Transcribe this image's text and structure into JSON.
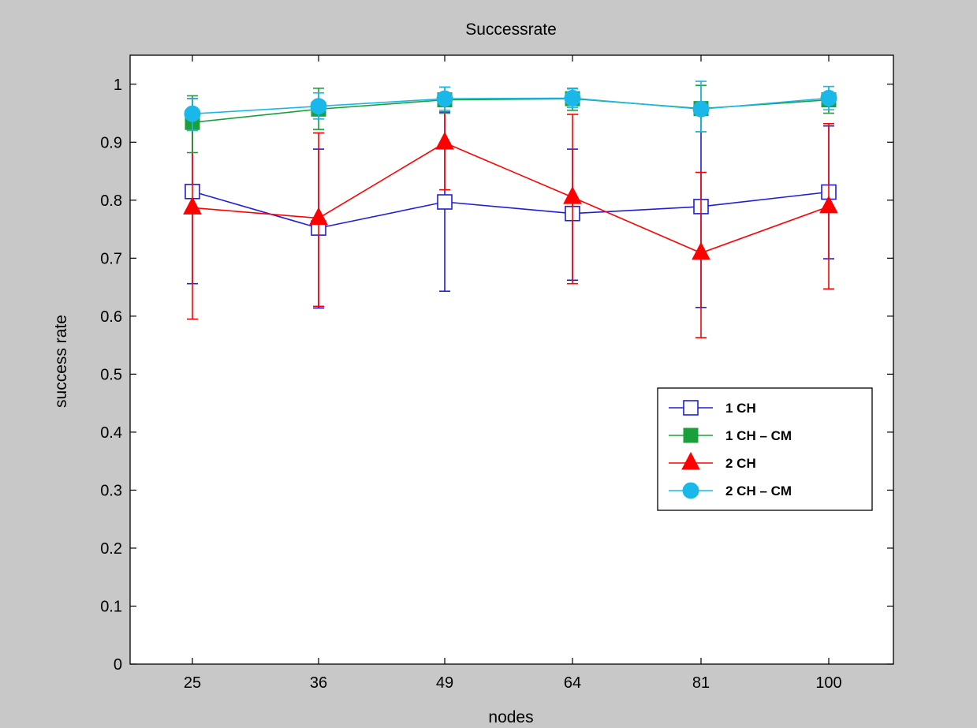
{
  "chart_data": {
    "type": "line",
    "title": "Successrate",
    "xlabel": "nodes",
    "ylabel": "success rate",
    "categories": [
      "25",
      "36",
      "49",
      "64",
      "81",
      "100"
    ],
    "ylim": [
      0,
      1.05
    ],
    "yticks": [
      "0",
      "0.1",
      "0.2",
      "0.3",
      "0.4",
      "0.5",
      "0.6",
      "0.7",
      "0.8",
      "0.9",
      "1"
    ],
    "grid": false,
    "legend_position": "right",
    "series": [
      {
        "name": "1 CH",
        "color": "#1f1fd6",
        "marker": "open-square",
        "values": [
          0.815,
          0.752,
          0.797,
          0.777,
          0.789,
          0.814
        ],
        "err_lower": [
          0.656,
          0.614,
          0.643,
          0.662,
          0.615,
          0.699
        ],
        "err_upper": [
          0.975,
          0.888,
          0.952,
          0.888,
          0.963,
          0.928
        ]
      },
      {
        "name": "1 CH – CM",
        "color": "#19a03a",
        "marker": "filled-square",
        "values": [
          0.934,
          0.957,
          0.973,
          0.975,
          0.958,
          0.973
        ],
        "err_lower": [
          0.882,
          0.922,
          0.95,
          0.955,
          0.918,
          0.95
        ],
        "err_upper": [
          0.98,
          0.993,
          0.995,
          0.993,
          0.998,
          0.996
        ]
      },
      {
        "name": "2 CH",
        "color": "#ff0000",
        "marker": "filled-triangle",
        "values": [
          0.787,
          0.769,
          0.899,
          0.805,
          0.709,
          0.789
        ],
        "err_lower": [
          0.595,
          0.617,
          0.818,
          0.656,
          0.563,
          0.647
        ],
        "err_upper": [
          0.975,
          0.916,
          0.972,
          0.948,
          0.848,
          0.932
        ]
      },
      {
        "name": "2 CH – CM",
        "color": "#1ab8e8",
        "marker": "filled-circle",
        "values": [
          0.949,
          0.962,
          0.975,
          0.976,
          0.957,
          0.976
        ],
        "err_lower": [
          0.92,
          0.94,
          0.955,
          0.96,
          0.918,
          0.956
        ],
        "err_upper": [
          0.975,
          0.985,
          0.995,
          0.992,
          1.005,
          0.996
        ]
      }
    ]
  }
}
